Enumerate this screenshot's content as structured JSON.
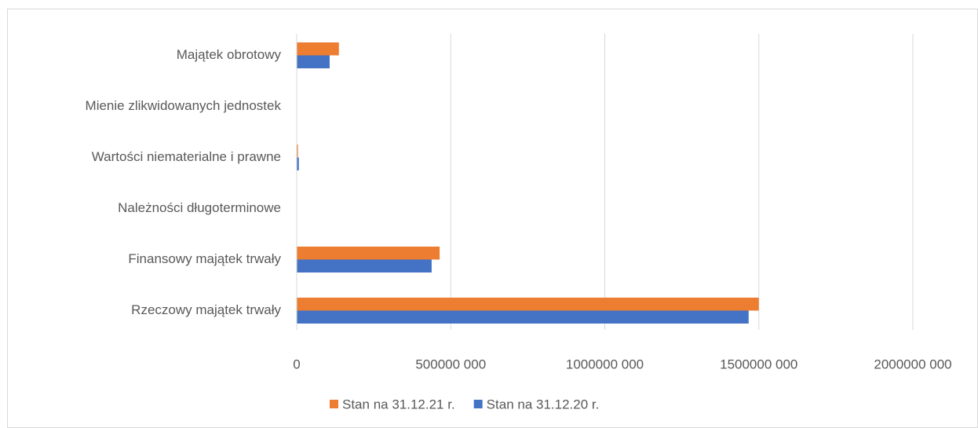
{
  "chart_data": {
    "type": "hbar",
    "categories": [
      "Majątek obrotowy",
      "Mienie zlikwidowanych jednostek",
      "Wartości niematerialne i prawne",
      "Należności długoterminowe",
      "Finansowy majątek trwały",
      "Rzeczowy majątek trwały"
    ],
    "series": [
      {
        "name": "Stan na 31.12.21 r.",
        "color": "#ed7d31",
        "values": [
          137000000,
          0,
          4000000,
          0,
          464000000,
          1500000000
        ]
      },
      {
        "name": "Stan na 31.12.20 r.",
        "color": "#4472c4",
        "values": [
          107000000,
          0,
          7000000,
          0,
          438000000,
          1467000000
        ]
      }
    ],
    "xlim": [
      0,
      2000000000
    ],
    "xticks": [
      0,
      {
        "value": 500000000,
        "label": "500000 000"
      },
      {
        "value": 1000000000,
        "label": "1000000 000"
      },
      {
        "value": 1500000000,
        "label": "1500000 000"
      },
      {
        "value": 2000000000,
        "label": "2000000 000"
      }
    ],
    "grid": true,
    "legend": "bottom"
  }
}
